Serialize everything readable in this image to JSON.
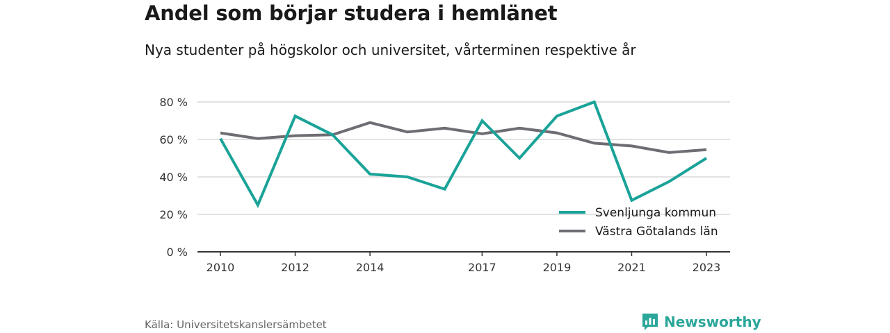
{
  "header": {
    "title": "Andel som börjar studera i hemlänet",
    "subtitle": "Nya studenter på högskolor och universitet, vårterminen respektive år"
  },
  "footer": {
    "source": "Källa: Universitetskanslersämbetet",
    "brand": "Newsworthy",
    "brand_icon": "bar-chart-speech-bubble-icon"
  },
  "colors": {
    "series_1": "#1aa398",
    "series_2": "#6f6d74",
    "grid": "#d9d9d9",
    "axis": "#333333",
    "brand": "#2aa69a"
  },
  "chart_data": {
    "type": "line",
    "x": [
      2010,
      2011,
      2012,
      2013,
      2014,
      2015,
      2016,
      2017,
      2018,
      2019,
      2020,
      2021,
      2022,
      2023
    ],
    "x_tick_labels": [
      "2010",
      "2012",
      "2014",
      "2017",
      "2019",
      "2021",
      "2023"
    ],
    "x_tick_values": [
      2010,
      2012,
      2014,
      2017,
      2019,
      2021,
      2023
    ],
    "ylim": [
      0,
      80
    ],
    "y_ticks": [
      0,
      20,
      40,
      60,
      80
    ],
    "y_tick_labels": [
      "0 %",
      "20 %",
      "40 %",
      "60 %",
      "80 %"
    ],
    "grid": true,
    "legend_position": "bottom-right",
    "series": [
      {
        "name": "Svenljunga kommun",
        "values": [
          60.5,
          25,
          72.5,
          62.5,
          41.5,
          40,
          33.5,
          70,
          50,
          72.5,
          80,
          27.5,
          37.5,
          50
        ]
      },
      {
        "name": "Västra Götalands län",
        "values": [
          63.5,
          60.5,
          62,
          62.5,
          69,
          64,
          66,
          63,
          66,
          63.5,
          58,
          56.5,
          53,
          54.5
        ]
      }
    ]
  }
}
